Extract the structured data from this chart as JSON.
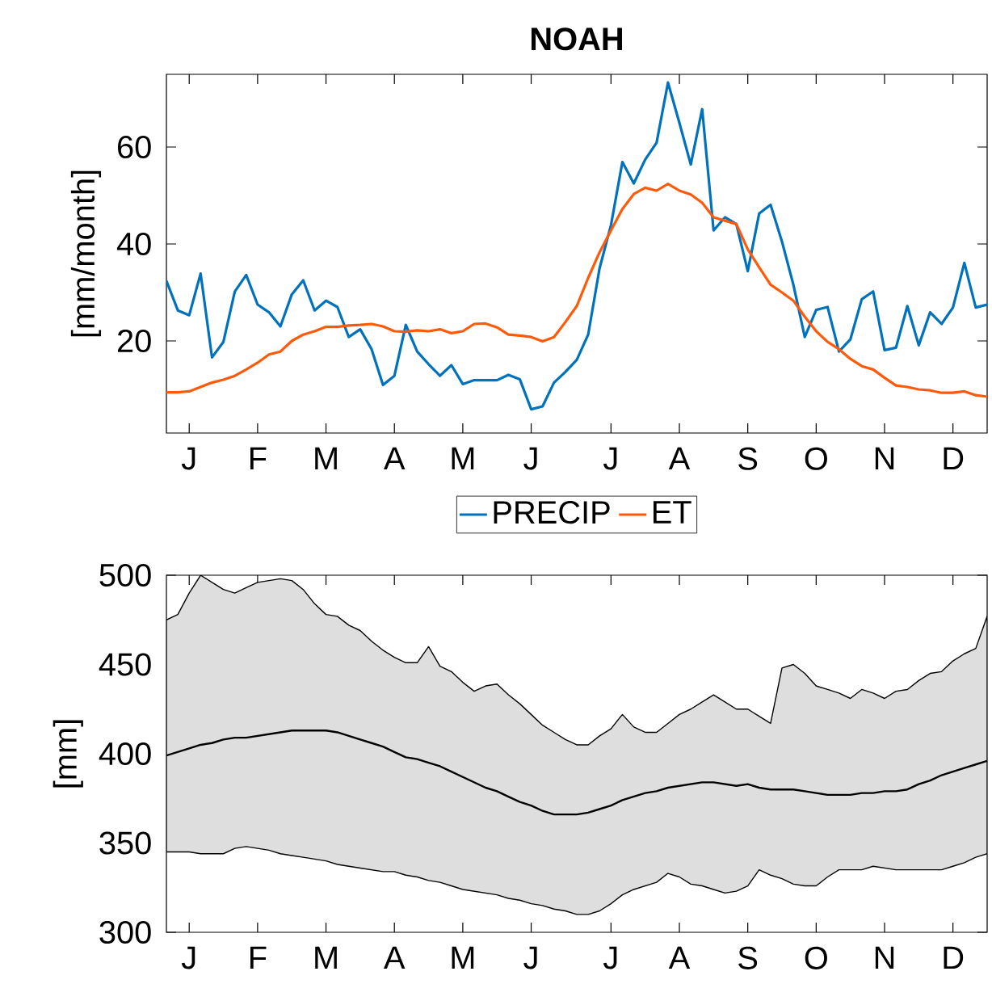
{
  "chart_data": [
    {
      "type": "line",
      "title": "NOAH",
      "ylabel": "[mm/month]",
      "legend": "bottom",
      "categories": [
        null,
        null,
        "J",
        null,
        null,
        null,
        null,
        null,
        "F",
        null,
        null,
        null,
        null,
        null,
        "M",
        null,
        null,
        null,
        null,
        null,
        "A",
        null,
        null,
        null,
        null,
        null,
        "M",
        null,
        null,
        null,
        null,
        null,
        "J",
        null,
        null,
        null,
        null,
        null,
        null,
        "J",
        null,
        null,
        null,
        null,
        null,
        "A",
        null,
        null,
        null,
        null,
        null,
        "S",
        null,
        null,
        null,
        null,
        null,
        "O",
        null,
        null,
        null,
        null,
        null,
        "N",
        null,
        null,
        null,
        null,
        null,
        "D",
        null,
        null,
        null
      ],
      "ylim": [
        1,
        75
      ],
      "yticks": [
        20,
        40,
        60
      ],
      "series": [
        {
          "name": "PRECIP",
          "color": "#0072bd",
          "values": [
            32.4,
            26.3,
            25.3,
            33.9,
            16.6,
            19.8,
            30.2,
            33.6,
            27.5,
            25.9,
            23.0,
            29.6,
            32.5,
            26.3,
            28.3,
            27.0,
            20.8,
            22.4,
            18.3,
            10.9,
            12.8,
            23.3,
            17.8,
            15.2,
            12.8,
            15.0,
            11.1,
            11.9,
            11.9,
            11.9,
            13.0,
            12.1,
            5.9,
            6.5,
            11.4,
            13.6,
            16.1,
            21.3,
            35.0,
            43.9,
            56.9,
            52.5,
            57.4,
            60.9,
            73.3,
            65.0,
            56.4,
            67.8,
            42.8,
            45.5,
            44.1,
            34.4,
            46.3,
            48.1,
            40.5,
            31.6,
            20.8,
            26.4,
            27.0,
            17.8,
            20.3,
            28.6,
            30.2,
            18.1,
            18.6,
            27.2,
            19.1,
            25.9,
            23.5,
            26.9,
            36.1,
            26.9,
            27.5
          ]
        },
        {
          "name": "ET",
          "color": "#ff5a0a",
          "values": [
            9.4,
            9.4,
            9.6,
            10.5,
            11.4,
            12.0,
            12.8,
            14.1,
            15.5,
            17.2,
            17.8,
            20.0,
            21.3,
            22.0,
            22.9,
            22.9,
            23.2,
            23.3,
            23.5,
            23.0,
            22.0,
            21.9,
            22.2,
            22.0,
            22.4,
            21.6,
            22.0,
            23.5,
            23.6,
            22.8,
            21.3,
            21.1,
            20.8,
            19.9,
            20.8,
            23.9,
            27.2,
            33.0,
            38.3,
            42.8,
            47.2,
            50.3,
            51.6,
            51.0,
            52.4,
            51.0,
            50.2,
            48.5,
            45.5,
            44.8,
            44.1,
            38.9,
            35.2,
            31.6,
            30.0,
            28.3,
            25.0,
            22.0,
            19.8,
            18.3,
            16.3,
            14.8,
            14.1,
            12.4,
            10.8,
            10.5,
            10.0,
            9.8,
            9.3,
            9.3,
            9.6,
            8.8,
            8.5
          ]
        }
      ]
    },
    {
      "type": "line",
      "ylabel": "[mm]",
      "categories": [
        null,
        null,
        "J",
        null,
        null,
        null,
        null,
        null,
        "F",
        null,
        null,
        null,
        null,
        null,
        "M",
        null,
        null,
        null,
        null,
        null,
        "A",
        null,
        null,
        null,
        null,
        null,
        "M",
        null,
        null,
        null,
        null,
        null,
        "J",
        null,
        null,
        null,
        null,
        null,
        null,
        "J",
        null,
        null,
        null,
        null,
        null,
        "A",
        null,
        null,
        null,
        null,
        null,
        "S",
        null,
        null,
        null,
        null,
        null,
        "O",
        null,
        null,
        null,
        null,
        null,
        "N",
        null,
        null,
        null,
        null,
        null,
        "D",
        null,
        null,
        null
      ],
      "ylim": [
        300,
        500
      ],
      "yticks": [
        300,
        350,
        400,
        450,
        500
      ],
      "series": [
        {
          "color": "#000000",
          "values": [
            399,
            401,
            403,
            405,
            406,
            408,
            409,
            409,
            410,
            411,
            412,
            413,
            413,
            413,
            413,
            412,
            410,
            408,
            406,
            404,
            401,
            398,
            397,
            395,
            393,
            390,
            387,
            384,
            381,
            379,
            376,
            373,
            371,
            368,
            366,
            366,
            366,
            367,
            369,
            371,
            374,
            376,
            378,
            379,
            381,
            382,
            383,
            384,
            384,
            383,
            382,
            383,
            381,
            380,
            380,
            380,
            379,
            378,
            377,
            377,
            377,
            378,
            378,
            379,
            379,
            380,
            383,
            385,
            388,
            390,
            392,
            394,
            396
          ],
          "lower": [
            345,
            345,
            345,
            344,
            344,
            344,
            347,
            348,
            347,
            346,
            344,
            343,
            342,
            341,
            340,
            338,
            337,
            336,
            335,
            334,
            334,
            332,
            331,
            329,
            328,
            326,
            324,
            323,
            322,
            321,
            319,
            318,
            316,
            315,
            313,
            312,
            310,
            310,
            312,
            316,
            321,
            324,
            326,
            328,
            333,
            331,
            327,
            326,
            324,
            322,
            323,
            326,
            335,
            332,
            330,
            327,
            326,
            326,
            331,
            335,
            335,
            335,
            337,
            336,
            335,
            335,
            335,
            335,
            335,
            337,
            339,
            342,
            344
          ],
          "upper": [
            475,
            478,
            490,
            500,
            496,
            492,
            490,
            493,
            496,
            497,
            498,
            497,
            492,
            484,
            478,
            477,
            472,
            469,
            463,
            458,
            454,
            451,
            451,
            460,
            449,
            446,
            440,
            435,
            438,
            439,
            433,
            428,
            422,
            416,
            412,
            408,
            405,
            405,
            410,
            414,
            422,
            415,
            412,
            412,
            417,
            422,
            425,
            429,
            433,
            429,
            425,
            425,
            421,
            417,
            448,
            450,
            445,
            438,
            436,
            434,
            431,
            436,
            434,
            431,
            435,
            436,
            441,
            445,
            446,
            452,
            456,
            459,
            477
          ]
        }
      ]
    }
  ]
}
